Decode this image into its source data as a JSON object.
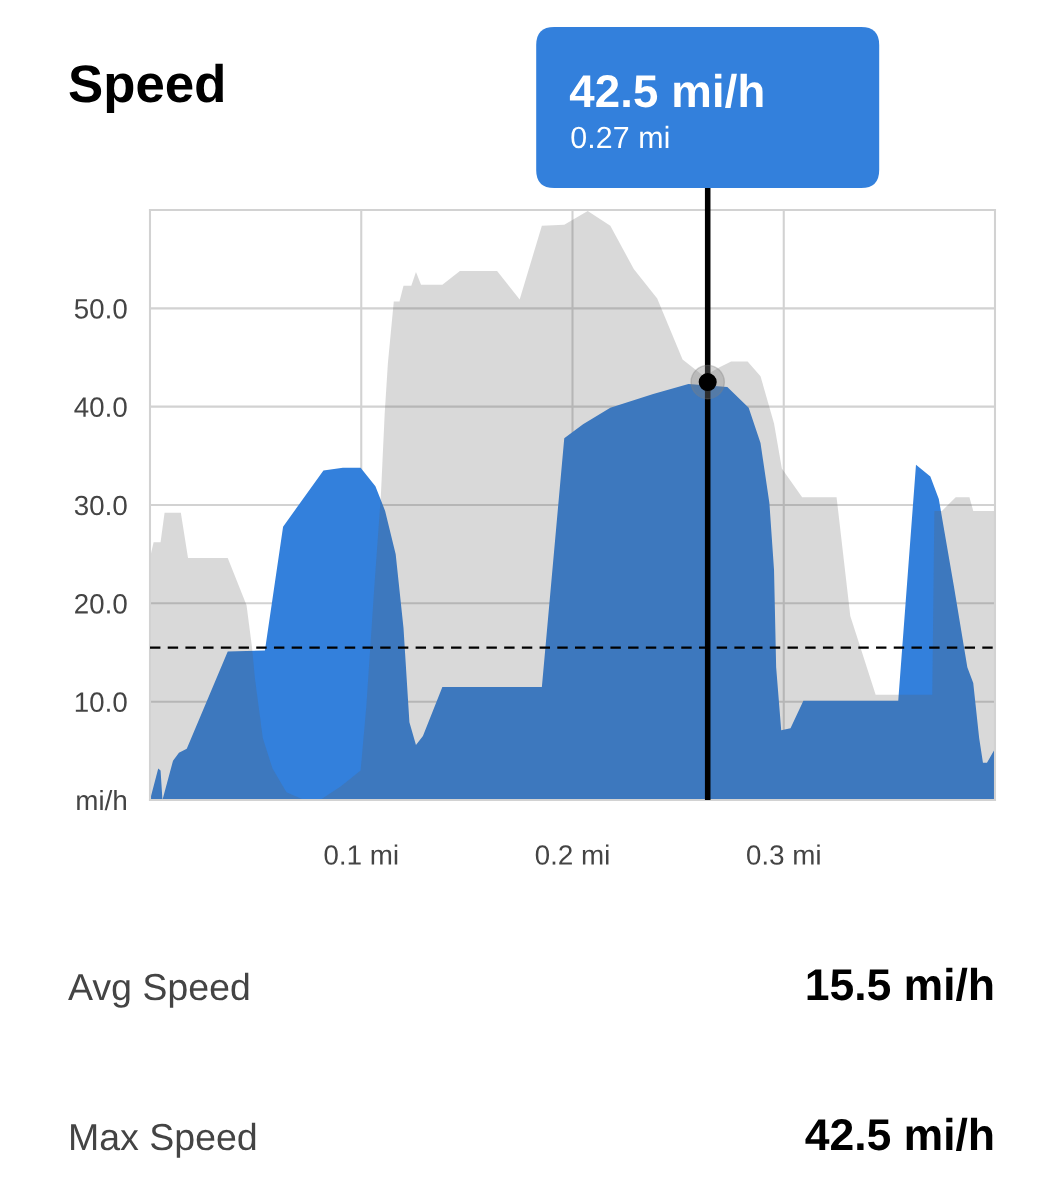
{
  "chart_data": {
    "type": "area",
    "title": "Speed",
    "series": [
      {
        "color": "#3380dc",
        "x": [
          0,
          0.0039,
          0.005,
          0.0059,
          0.0109,
          0.0137,
          0.0174,
          0.0368,
          0.0544,
          0.063,
          0.0821,
          0.0913,
          0.0997,
          0.1067,
          0.1113,
          0.1163,
          0.12,
          0.1228,
          0.1259,
          0.1292,
          0.1384,
          0.1855,
          0.1961,
          0.205,
          0.2179,
          0.2382,
          0.2549,
          0.2733,
          0.2834,
          0.289,
          0.2932,
          0.2954,
          0.2964,
          0.2988,
          0.3032,
          0.3093,
          0.3542,
          0.3626,
          0.3694,
          0.3734,
          0.3805,
          0.3869,
          0.3897,
          0.3925,
          0.3943,
          0.3962,
          0.4
        ],
        "values": [
          0,
          3.2,
          3.0,
          0,
          4.0,
          4.8,
          5.2,
          15.1,
          15.2,
          27.8,
          33.5,
          33.8,
          33.8,
          31.9,
          29.4,
          25.0,
          17.5,
          7.9,
          5.6,
          6.5,
          11.5,
          11.5,
          36.8,
          38.2,
          39.9,
          41.3,
          42.3,
          42.0,
          39.9,
          36.3,
          30.2,
          23.4,
          13.5,
          7.1,
          7.3,
          10.1,
          10.1,
          34.1,
          32.9,
          30.6,
          21.8,
          13.5,
          11.9,
          6.3,
          3.8,
          3.8,
          5.2
        ]
      },
      {
        "color": "#d9d9d9",
        "x": [
          0,
          0.0017,
          0.005,
          0.0069,
          0.0146,
          0.018,
          0.0368,
          0.0457,
          0.0483,
          0.0497,
          0.0534,
          0.058,
          0.0646,
          0.0719,
          0.0812,
          0.0904,
          0.0997,
          0.1024,
          0.1061,
          0.1093,
          0.1111,
          0.1126,
          0.1154,
          0.1181,
          0.12,
          0.1237,
          0.1259,
          0.1283,
          0.1384,
          0.1467,
          0.1643,
          0.175,
          0.1855,
          0.1961,
          0.2072,
          0.2179,
          0.229,
          0.2401,
          0.2521,
          0.2622,
          0.2696,
          0.2751,
          0.2829,
          0.289,
          0.2954,
          0.2991,
          0.3087,
          0.325,
          0.3315,
          0.3435,
          0.3703,
          0.3713,
          0.3749,
          0.3814,
          0.3879,
          0.3897,
          0.4
        ],
        "values": [
          24.6,
          26.2,
          26.2,
          29.2,
          29.2,
          24.6,
          24.6,
          19.8,
          15.5,
          12.3,
          6.3,
          3.2,
          0.8,
          0.1,
          0.1,
          1.4,
          3.0,
          9.5,
          21.4,
          31.0,
          39.3,
          44.4,
          50.7,
          50.7,
          52.3,
          52.3,
          53.7,
          52.4,
          52.4,
          53.8,
          53.8,
          50.9,
          58.4,
          58.5,
          59.9,
          58.4,
          54.0,
          51.0,
          44.8,
          43.1,
          44.0,
          44.6,
          44.6,
          43.1,
          38.3,
          33.7,
          30.8,
          30.8,
          18.7,
          10.7,
          10.7,
          29.4,
          29.4,
          30.8,
          30.8,
          29.4,
          29.4
        ]
      },
      {
        "type": "scatter",
        "marker": "circle",
        "color": "#000000",
        "x": [
          0.264
        ],
        "values": [
          42.5
        ]
      }
    ],
    "xlim": [
      0,
      0.4
    ],
    "xticks": [
      {
        "value": 0.1,
        "label": "0.1 mi"
      },
      {
        "value": 0.2,
        "label": "0.2 mi"
      },
      {
        "value": 0.3,
        "label": "0.3 mi"
      }
    ],
    "ylim": [
      0,
      60
    ],
    "yticks": [
      {
        "value": 0,
        "label": "mi/h"
      },
      {
        "value": 10,
        "label": "10.0"
      },
      {
        "value": 20,
        "label": "20.0"
      },
      {
        "value": 30,
        "label": "30.0"
      },
      {
        "value": 40,
        "label": "40.0"
      },
      {
        "value": 50,
        "label": "50.0"
      }
    ],
    "grid": true,
    "ref_lines": [
      {
        "axis": "y",
        "value": 15.5,
        "color": "#000000",
        "line_style": "dashed"
      },
      {
        "axis": "x",
        "value": 0.264,
        "color": "#000000",
        "line_style": "solid"
      }
    ],
    "annotations": [
      "42.5 mi/h",
      "0.27 mi",
      "Avg Speed",
      "15.5 mi/h",
      "Max Speed",
      "42.5 mi/h"
    ]
  }
}
